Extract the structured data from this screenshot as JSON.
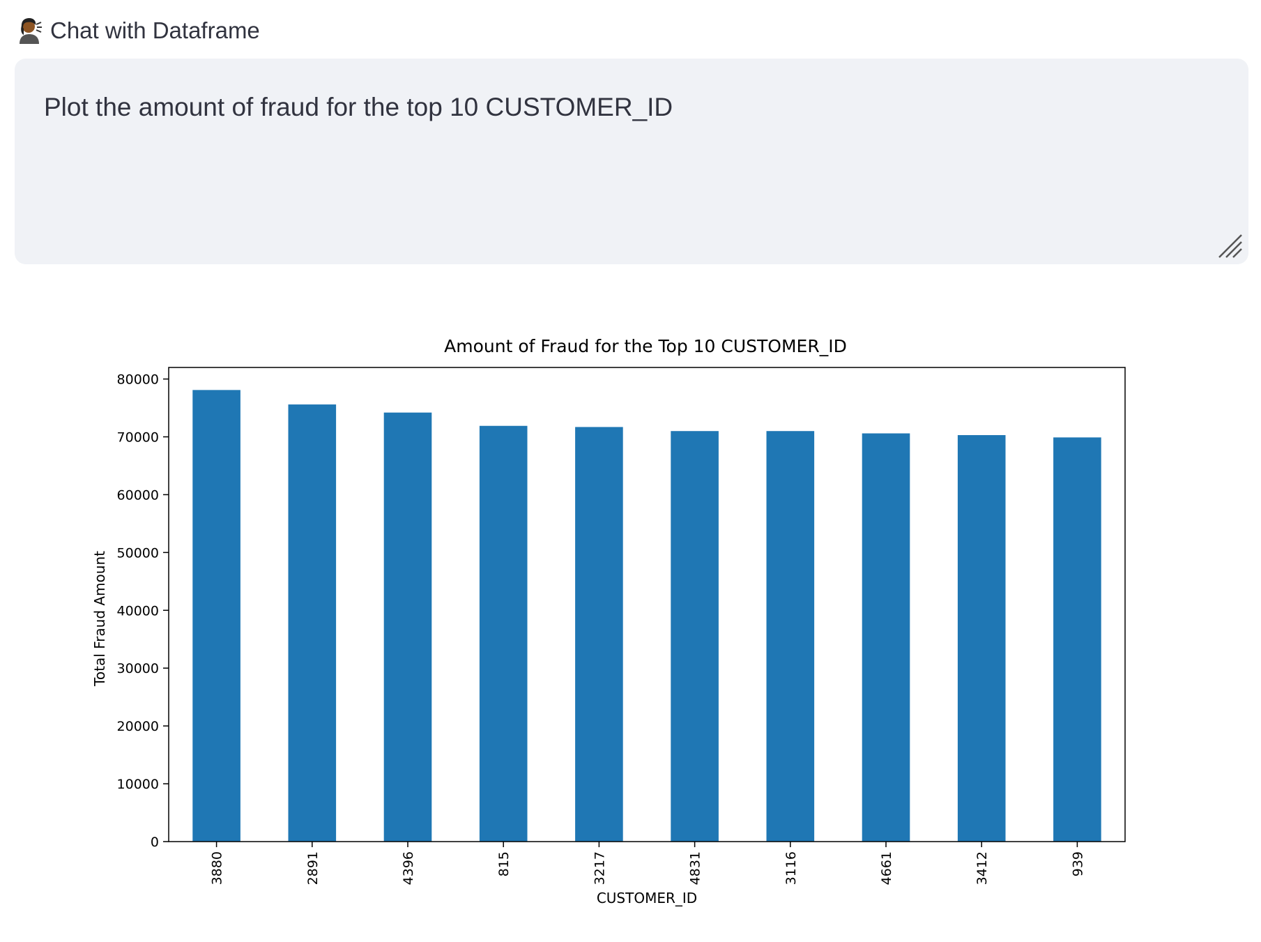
{
  "widget": {
    "label": "Chat with Dataframe",
    "icon": "woman-speaking-icon",
    "prompt_value": "Plot the amount of fraud for the top 10 CUSTOMER_ID"
  },
  "colors": {
    "bar": "#1f77b4",
    "input_background": "#f0f2f6",
    "text": "#31333f"
  },
  "chart_data": {
    "type": "bar",
    "title": "Amount of Fraud for the Top 10 CUSTOMER_ID",
    "xlabel": "CUSTOMER_ID",
    "ylabel": "Total Fraud Amount",
    "categories": [
      "3880",
      "2891",
      "4396",
      "815",
      "3217",
      "4831",
      "3116",
      "4661",
      "3412",
      "939"
    ],
    "values": [
      78100,
      75600,
      74200,
      71900,
      71700,
      71000,
      71000,
      70600,
      70300,
      69900
    ],
    "ylim": [
      0,
      82000
    ],
    "yticks": [
      0,
      10000,
      20000,
      30000,
      40000,
      50000,
      60000,
      70000,
      80000
    ],
    "ytick_labels": [
      "0",
      "10000",
      "20000",
      "30000",
      "40000",
      "50000",
      "60000",
      "70000",
      "80000"
    ],
    "grid": false,
    "legend": "none"
  }
}
